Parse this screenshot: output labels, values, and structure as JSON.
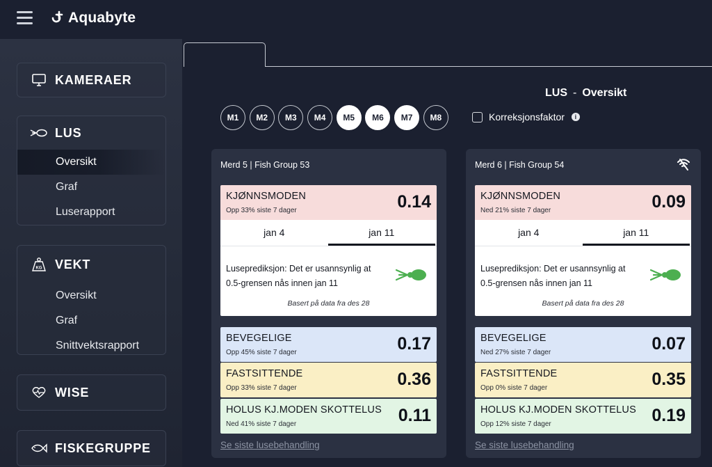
{
  "app": {
    "name": "Aquabyte"
  },
  "sidebar": {
    "sections": [
      {
        "label": "KAMERAER",
        "icon": "monitor-icon",
        "items": []
      },
      {
        "label": "LUS",
        "icon": "louse-icon",
        "items": [
          {
            "label": "Oversikt",
            "active": true
          },
          {
            "label": "Graf"
          },
          {
            "label": "Luserapport"
          }
        ]
      },
      {
        "label": "VEKT",
        "icon": "weight-kg-icon",
        "items": [
          {
            "label": "Oversikt"
          },
          {
            "label": "Graf"
          },
          {
            "label": "Snittvektsrapport"
          }
        ]
      },
      {
        "label": "WISE",
        "icon": "heart-pulse-icon",
        "items": []
      },
      {
        "label": "FISKEGRUPPE",
        "icon": "fish-icon",
        "items": []
      }
    ]
  },
  "header": {
    "section": "LUS",
    "separator": "-",
    "page": "Oversikt"
  },
  "pens": [
    {
      "label": "M1",
      "selected": false
    },
    {
      "label": "M2",
      "selected": false
    },
    {
      "label": "M3",
      "selected": false
    },
    {
      "label": "M4",
      "selected": false
    },
    {
      "label": "M5",
      "selected": true
    },
    {
      "label": "M6",
      "selected": true
    },
    {
      "label": "M7",
      "selected": true
    },
    {
      "label": "M8",
      "selected": false
    }
  ],
  "correction": {
    "label": "Korreksjonsfaktor",
    "checked": false,
    "info": "i"
  },
  "groups": [
    {
      "title": "Merd 5 | Fish Group 53",
      "kjonnsmoden": {
        "name": "KJØNNSMODEN",
        "trend": "Opp 33% siste 7 dager",
        "value": "0.14"
      },
      "date_tabs": [
        "jan 4",
        "jan 11"
      ],
      "prediction": "Luseprediksjon: Det er usannsynlig at 0.5-grensen nås innen jan 11",
      "based_on": "Basert på data fra des 28",
      "bevegelige": {
        "name": "BEVEGELIGE",
        "trend": "Opp 45% siste 7 dager",
        "value": "0.17"
      },
      "fastsittende": {
        "name": "FASTSITTENDE",
        "trend": "Opp 33% siste 7 dager",
        "value": "0.36"
      },
      "holus": {
        "name": "HOLUS KJ.MODEN SKOTTELUS",
        "trend": "Ned 41% siste 7 dager",
        "value": "0.11"
      },
      "link": "Se siste lusebehandling"
    },
    {
      "title": "Merd 6 | Fish Group 54",
      "kjonnsmoden": {
        "name": "KJØNNSMODEN",
        "trend": "Ned 21% siste 7 dager",
        "value": "0.09"
      },
      "date_tabs": [
        "jan 4",
        "jan 11"
      ],
      "prediction": "Luseprediksjon: Det er usannsynlig at 0.5-grensen nås innen jan 11",
      "based_on": "Basert på data fra des 28",
      "bevegelige": {
        "name": "BEVEGELIGE",
        "trend": "Ned 27% siste 7 dager",
        "value": "0.07"
      },
      "fastsittende": {
        "name": "FASTSITTENDE",
        "trend": "Opp 0% siste 7 dager",
        "value": "0.35"
      },
      "holus": {
        "name": "HOLUS KJ.MODEN SKOTTELUS",
        "trend": "Opp 12% siste 7 dager",
        "value": "0.19"
      },
      "link": "Se siste lusebehandling"
    }
  ],
  "colors": {
    "background": "#1b2030",
    "kjonnsmoden": "#f7dcdb",
    "bevegelige": "#dbe6f8",
    "fastsittende": "#faefc5",
    "holus": "#e2f5e4",
    "louse_green": "#4caf50"
  }
}
